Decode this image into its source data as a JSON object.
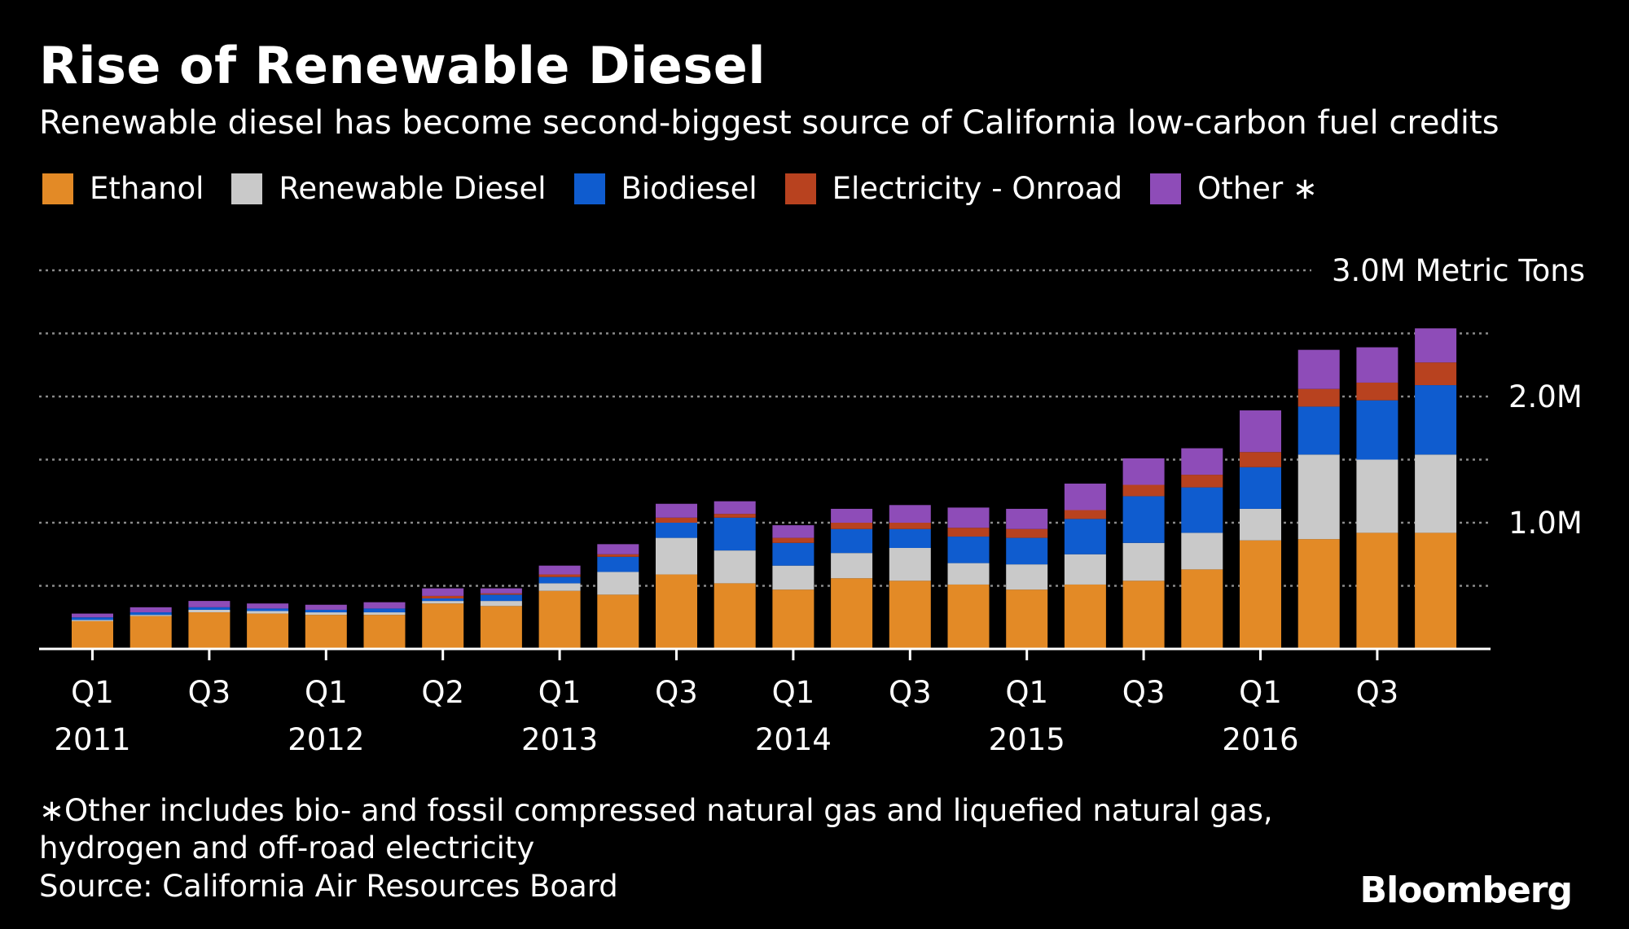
{
  "header": {
    "title": "Rise of Renewable Diesel",
    "subtitle": "Renewable diesel has become second-biggest source of California low-carbon fuel credits"
  },
  "footer": {
    "note_line1": "∗Other includes bio- and fossil compressed natural gas and liquefied natural gas,",
    "note_line2": "hydrogen and off-road electricity",
    "source": "Source: California Air Resources Board",
    "brand": "Bloomberg"
  },
  "chart_data": {
    "type": "bar",
    "stacked": true,
    "title": "Rise of Renewable Diesel",
    "unit_label": "3.0M Metric Tons",
    "y_ticks": [
      {
        "value": 3.0,
        "label": "3.0M Metric Tons"
      },
      {
        "value": 2.0,
        "label": "2.0M"
      },
      {
        "value": 1.0,
        "label": "1.0M"
      }
    ],
    "ylim": [
      0,
      3.0
    ],
    "gridlines": [
      0.5,
      1.0,
      1.5,
      2.0,
      2.5,
      3.0
    ],
    "x_tick_labels": [
      {
        "index": 0,
        "quarter": "Q1",
        "year": "2011"
      },
      {
        "index": 2,
        "quarter": "Q3",
        "year": ""
      },
      {
        "index": 4,
        "quarter": "Q1",
        "year": "2012"
      },
      {
        "index": 6,
        "quarter": "Q2",
        "year": ""
      },
      {
        "index": 8,
        "quarter": "Q1",
        "year": "2013"
      },
      {
        "index": 10,
        "quarter": "Q3",
        "year": ""
      },
      {
        "index": 12,
        "quarter": "Q1",
        "year": "2014"
      },
      {
        "index": 14,
        "quarter": "Q3",
        "year": ""
      },
      {
        "index": 16,
        "quarter": "Q1",
        "year": "2015"
      },
      {
        "index": 18,
        "quarter": "Q3",
        "year": ""
      },
      {
        "index": 20,
        "quarter": "Q1",
        "year": "2016"
      },
      {
        "index": 22,
        "quarter": "Q3",
        "year": ""
      }
    ],
    "bar_count": 24,
    "series": [
      {
        "name": "Ethanol",
        "color": "#e38a26",
        "values": [
          0.22,
          0.26,
          0.29,
          0.28,
          0.27,
          0.27,
          0.36,
          0.34,
          0.46,
          0.43,
          0.59,
          0.52,
          0.47,
          0.56,
          0.54,
          0.51,
          0.47,
          0.51,
          0.54,
          0.63,
          0.86,
          0.87,
          0.92,
          0.92
        ]
      },
      {
        "name": "Renewable Diesel",
        "color": "#c9c9c9",
        "values": [
          0.01,
          0.01,
          0.02,
          0.02,
          0.02,
          0.02,
          0.02,
          0.04,
          0.06,
          0.18,
          0.29,
          0.26,
          0.19,
          0.2,
          0.26,
          0.17,
          0.2,
          0.24,
          0.3,
          0.29,
          0.25,
          0.67,
          0.58,
          0.62
        ]
      },
      {
        "name": "Biodiesel",
        "color": "#0f5ccf",
        "values": [
          0.02,
          0.02,
          0.02,
          0.02,
          0.02,
          0.03,
          0.02,
          0.05,
          0.05,
          0.12,
          0.12,
          0.26,
          0.18,
          0.19,
          0.15,
          0.21,
          0.21,
          0.28,
          0.37,
          0.36,
          0.33,
          0.38,
          0.47,
          0.55
        ]
      },
      {
        "name": "Electricity - Onroad",
        "color": "#b8421f",
        "values": [
          0.0,
          0.0,
          0.0,
          0.0,
          0.0,
          0.0,
          0.02,
          0.01,
          0.02,
          0.02,
          0.04,
          0.03,
          0.04,
          0.05,
          0.05,
          0.07,
          0.07,
          0.07,
          0.09,
          0.1,
          0.12,
          0.14,
          0.14,
          0.18
        ]
      },
      {
        "name": "Other ∗",
        "color": "#8e4cb8",
        "values": [
          0.03,
          0.04,
          0.05,
          0.04,
          0.04,
          0.05,
          0.06,
          0.04,
          0.07,
          0.08,
          0.11,
          0.1,
          0.1,
          0.11,
          0.14,
          0.16,
          0.16,
          0.21,
          0.21,
          0.21,
          0.33,
          0.31,
          0.28,
          0.27
        ]
      }
    ]
  }
}
